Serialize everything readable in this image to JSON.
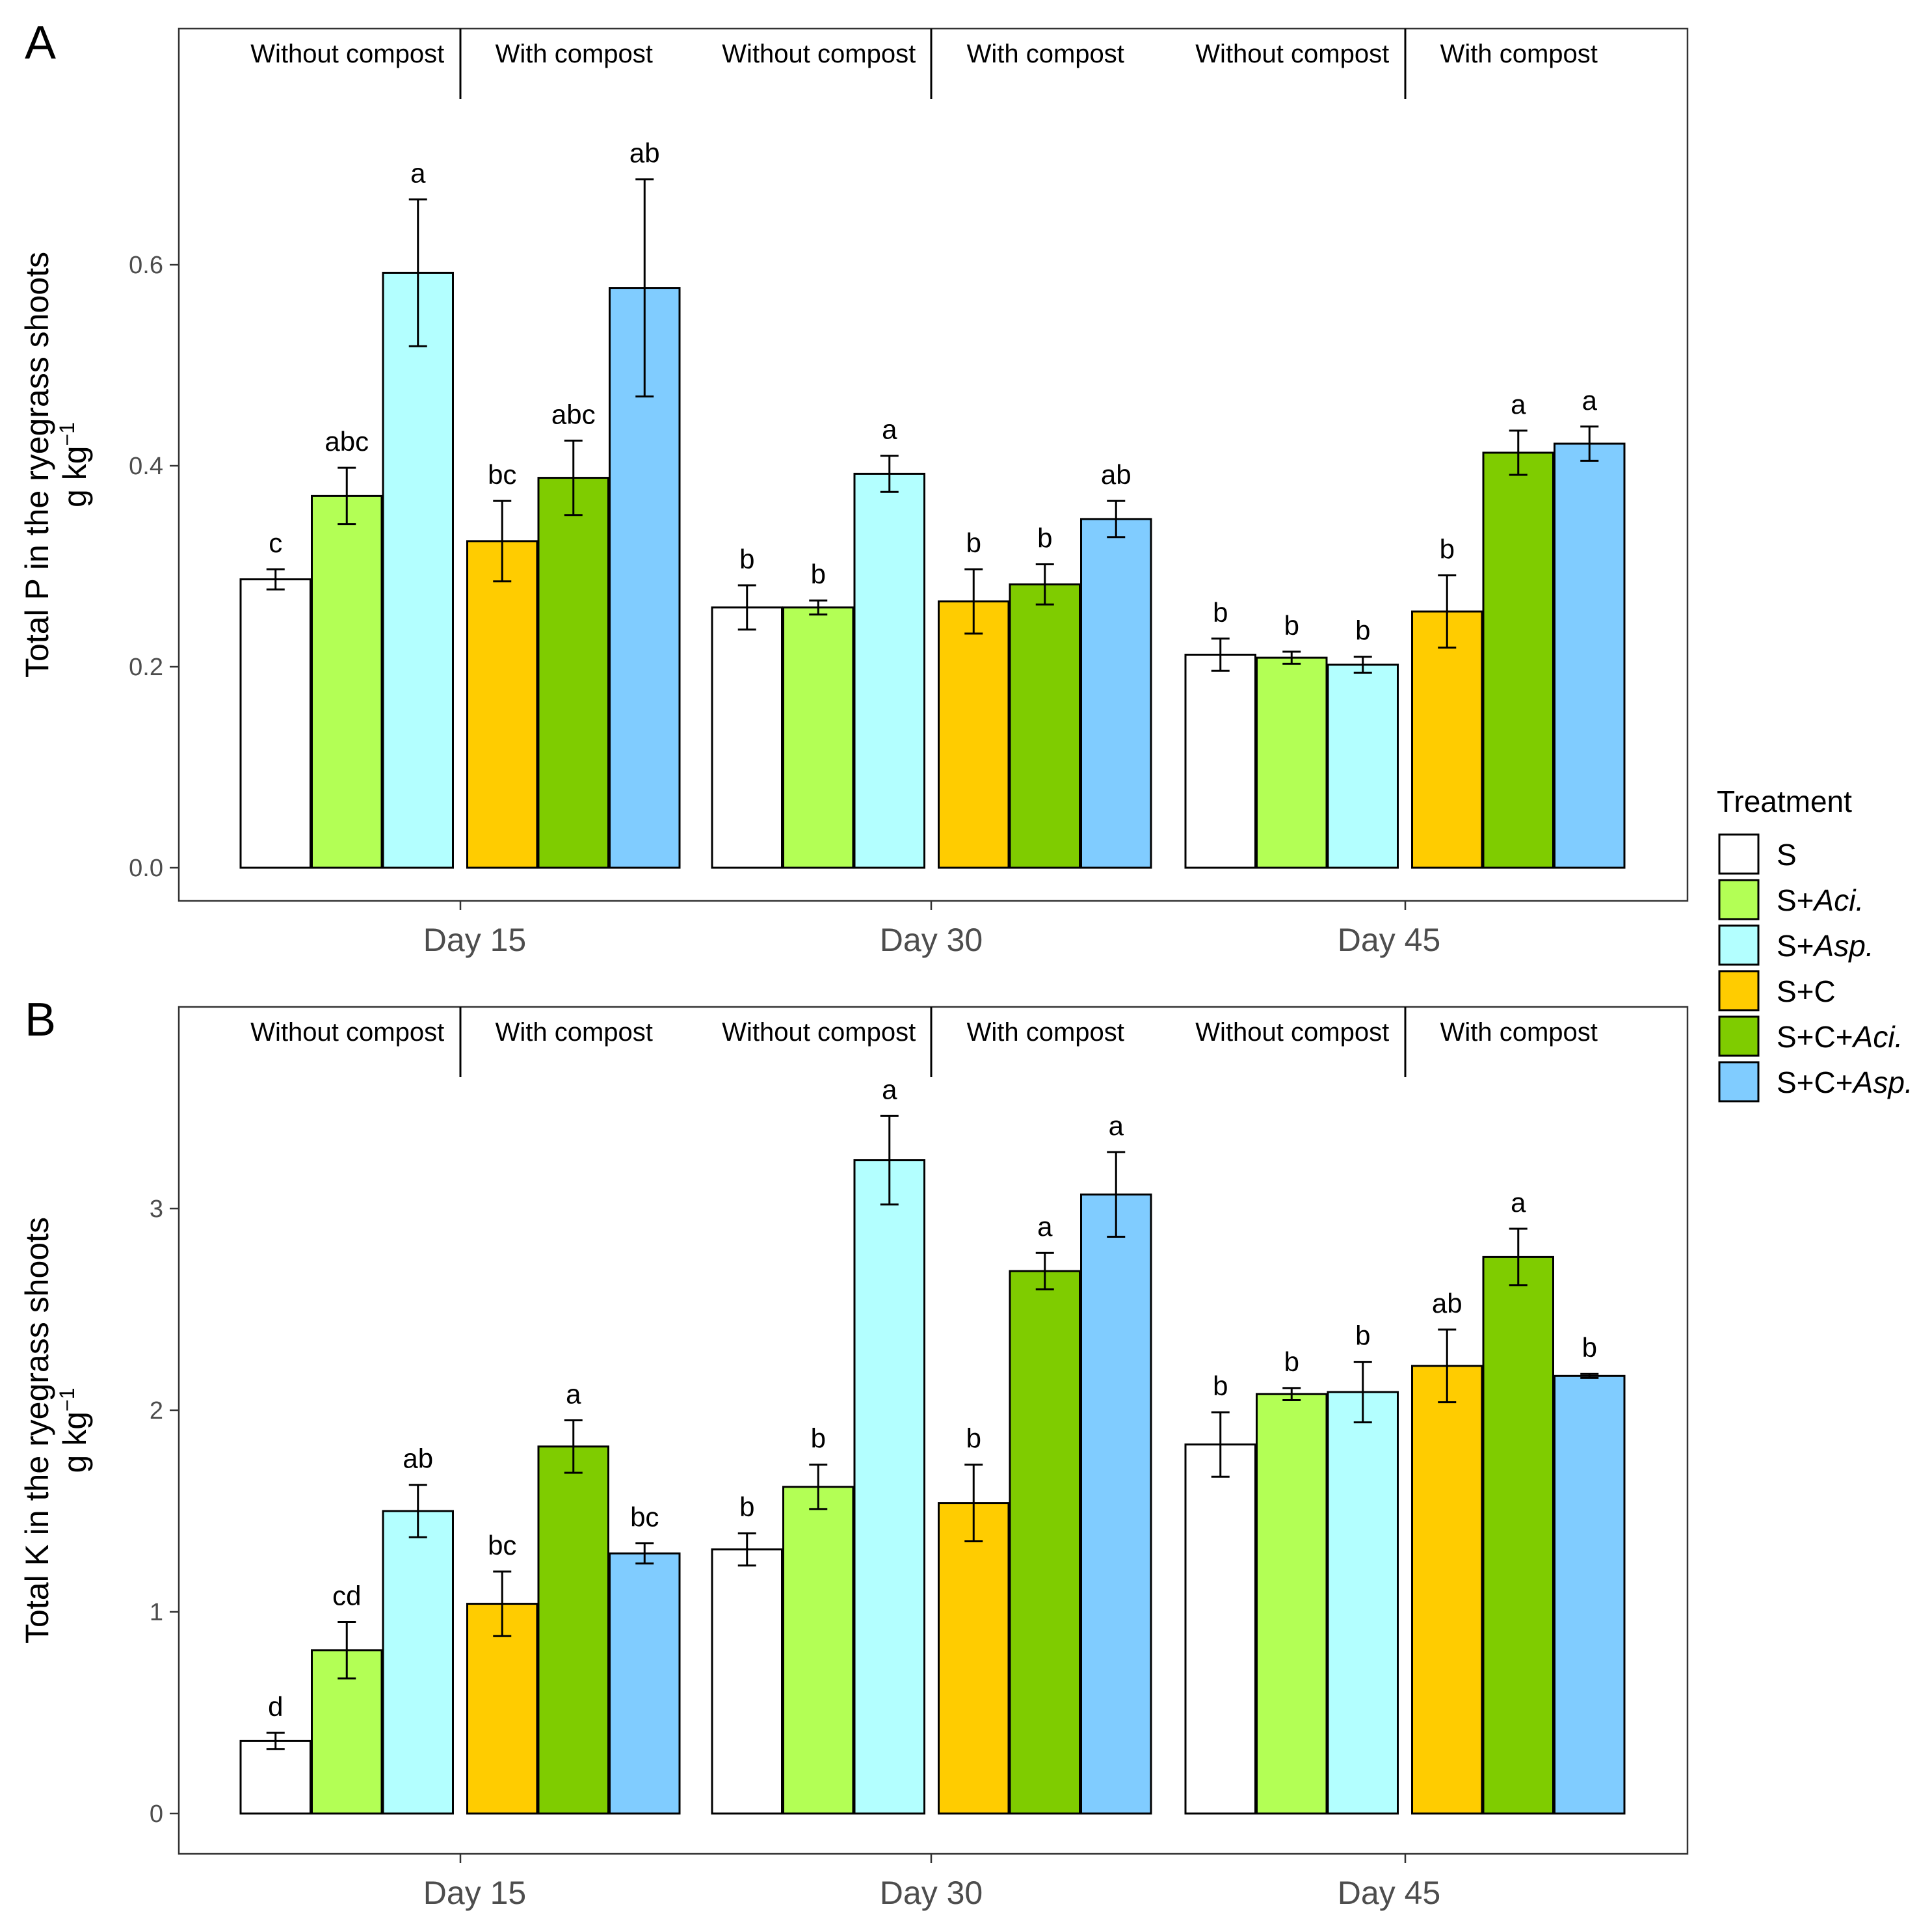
{
  "colors": {
    "S": "#ffffff",
    "S+Aci.": "#b3ff55",
    "S+Asp.": "#b3ffff",
    "S+C": "#ffcc00",
    "S+C+Aci.": "#7fcc00",
    "S+C+Asp.": "#80ccff"
  },
  "legend": {
    "title": "Treatment",
    "items": [
      {
        "key": "S",
        "prefix": "S",
        "italic": ""
      },
      {
        "key": "S+Aci.",
        "prefix": "S+",
        "italic": "Aci."
      },
      {
        "key": "S+Asp.",
        "prefix": "S+",
        "italic": "Asp."
      },
      {
        "key": "S+C",
        "prefix": "S+C",
        "italic": ""
      },
      {
        "key": "S+C+Aci.",
        "prefix": "S+C+",
        "italic": "Aci."
      },
      {
        "key": "S+C+Asp.",
        "prefix": "S+C+",
        "italic": "Asp."
      }
    ]
  },
  "chart_data": [
    {
      "type": "bar",
      "panel": "A",
      "ylabel_line1": "Total P in the ryegrass shoots",
      "ylabel_line2": "g kg",
      "ylabel_sup": "−1",
      "ylim": [
        -0.033,
        0.835
      ],
      "yticks": [
        0.0,
        0.2,
        0.4,
        0.6
      ],
      "ytick_labels": [
        "0.0",
        "0.2",
        "0.4",
        "0.6"
      ],
      "categories": [
        "Day 15",
        "Day 30",
        "Day 45"
      ],
      "group_labels": [
        "Without compost",
        "With compost"
      ],
      "series": [
        {
          "name": "S",
          "values": [
            0.287,
            0.259,
            0.212
          ],
          "errors": [
            0.01,
            0.022,
            0.016
          ],
          "letters": [
            "c",
            "b",
            "b"
          ]
        },
        {
          "name": "S+Aci.",
          "values": [
            0.37,
            0.259,
            0.209
          ],
          "errors": [
            0.028,
            0.007,
            0.006
          ],
          "letters": [
            "abc",
            "b",
            "b"
          ]
        },
        {
          "name": "S+Asp.",
          "values": [
            0.592,
            0.392,
            0.202
          ],
          "errors": [
            0.073,
            0.018,
            0.008
          ],
          "letters": [
            "a",
            "a",
            "b"
          ]
        },
        {
          "name": "S+C",
          "values": [
            0.325,
            0.265,
            0.255
          ],
          "errors": [
            0.04,
            0.032,
            0.036
          ],
          "letters": [
            "bc",
            "b",
            "b"
          ]
        },
        {
          "name": "S+C+Aci.",
          "values": [
            0.388,
            0.282,
            0.413
          ],
          "errors": [
            0.037,
            0.02,
            0.022
          ],
          "letters": [
            "abc",
            "b",
            "a"
          ]
        },
        {
          "name": "S+C+Asp.",
          "values": [
            0.577,
            0.347,
            0.422
          ],
          "errors": [
            0.108,
            0.018,
            0.017
          ],
          "letters": [
            "ab",
            "ab",
            "a"
          ]
        }
      ]
    },
    {
      "type": "bar",
      "panel": "B",
      "ylabel_line1": "Total K in the ryegrass shoots",
      "ylabel_line2": "g kg",
      "ylabel_sup": "−1",
      "ylim": [
        -0.2,
        4.0
      ],
      "yticks": [
        0,
        1,
        2,
        3
      ],
      "ytick_labels": [
        "0",
        "1",
        "2",
        "3"
      ],
      "categories": [
        "Day 15",
        "Day 30",
        "Day 45"
      ],
      "group_labels": [
        "Without compost",
        "With compost"
      ],
      "series": [
        {
          "name": "S",
          "values": [
            0.36,
            1.31,
            1.83
          ],
          "errors": [
            0.04,
            0.08,
            0.16
          ],
          "letters": [
            "d",
            "b",
            "b"
          ]
        },
        {
          "name": "S+Aci.",
          "values": [
            0.81,
            1.62,
            2.08
          ],
          "errors": [
            0.14,
            0.11,
            0.03
          ],
          "letters": [
            "cd",
            "b",
            "b"
          ]
        },
        {
          "name": "S+Asp.",
          "values": [
            1.5,
            3.24,
            2.09
          ],
          "errors": [
            0.13,
            0.22,
            0.15
          ],
          "letters": [
            "ab",
            "a",
            "b"
          ]
        },
        {
          "name": "S+C",
          "values": [
            1.04,
            1.54,
            2.22
          ],
          "errors": [
            0.16,
            0.19,
            0.18
          ],
          "letters": [
            "bc",
            "b",
            "ab"
          ]
        },
        {
          "name": "S+C+Aci.",
          "values": [
            1.82,
            2.69,
            2.76
          ],
          "errors": [
            0.13,
            0.09,
            0.14
          ],
          "letters": [
            "a",
            "a",
            "a"
          ]
        },
        {
          "name": "S+C+Asp.",
          "values": [
            1.29,
            3.07,
            2.17
          ],
          "errors": [
            0.05,
            0.21,
            0.01
          ],
          "letters": [
            "bc",
            "a",
            "b"
          ]
        }
      ]
    }
  ]
}
